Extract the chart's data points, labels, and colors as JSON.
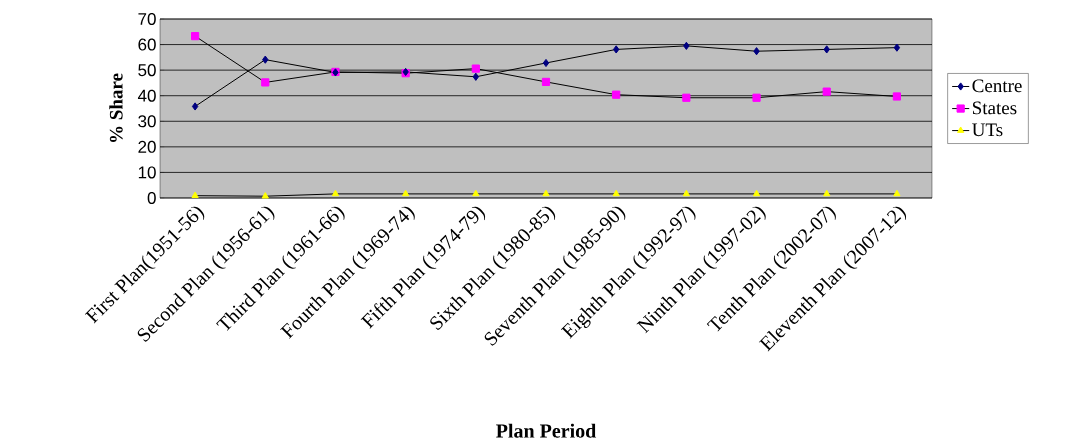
{
  "chart_data": {
    "type": "line",
    "xlabel": "Plan Period",
    "ylabel": "% Share",
    "categories": [
      "First Plan(1951-56)",
      "Second Plan (1956-61)",
      "Third Plan (1961-66)",
      "Fourth Plan (1969-74)",
      "Fifth Plan (1974-79)",
      "Sixth Plan (1980-85)",
      "Seventh Plan (1985-90)",
      "Eighth Plan (1992-97)",
      "Ninth Plan (1997-02)",
      "Tenth Plan (2002-07)",
      "Eleventh Plan (2007-12)"
    ],
    "series": [
      {
        "name": "Centre",
        "color": "#000080",
        "marker": "diamond",
        "values": [
          35.8,
          54.1,
          49.1,
          49.3,
          47.4,
          52.8,
          58.1,
          59.5,
          57.4,
          58.1,
          58.8
        ]
      },
      {
        "name": "States",
        "color": "#ff00ff",
        "marker": "square",
        "values": [
          63.3,
          45.2,
          49.3,
          48.8,
          50.6,
          45.4,
          40.4,
          39.2,
          39.2,
          41.6,
          39.7
        ]
      },
      {
        "name": "UTs",
        "color": "#ffff00",
        "marker": "triangle",
        "values": [
          0.9,
          0.7,
          1.6,
          1.6,
          1.6,
          1.6,
          1.6,
          1.6,
          1.6,
          1.6,
          1.6
        ]
      }
    ],
    "ylim": [
      0,
      70
    ],
    "yticks": [
      0,
      10,
      20,
      30,
      40,
      50,
      60,
      70
    ],
    "grid": "y",
    "legend": "right",
    "line_style": "solid"
  }
}
